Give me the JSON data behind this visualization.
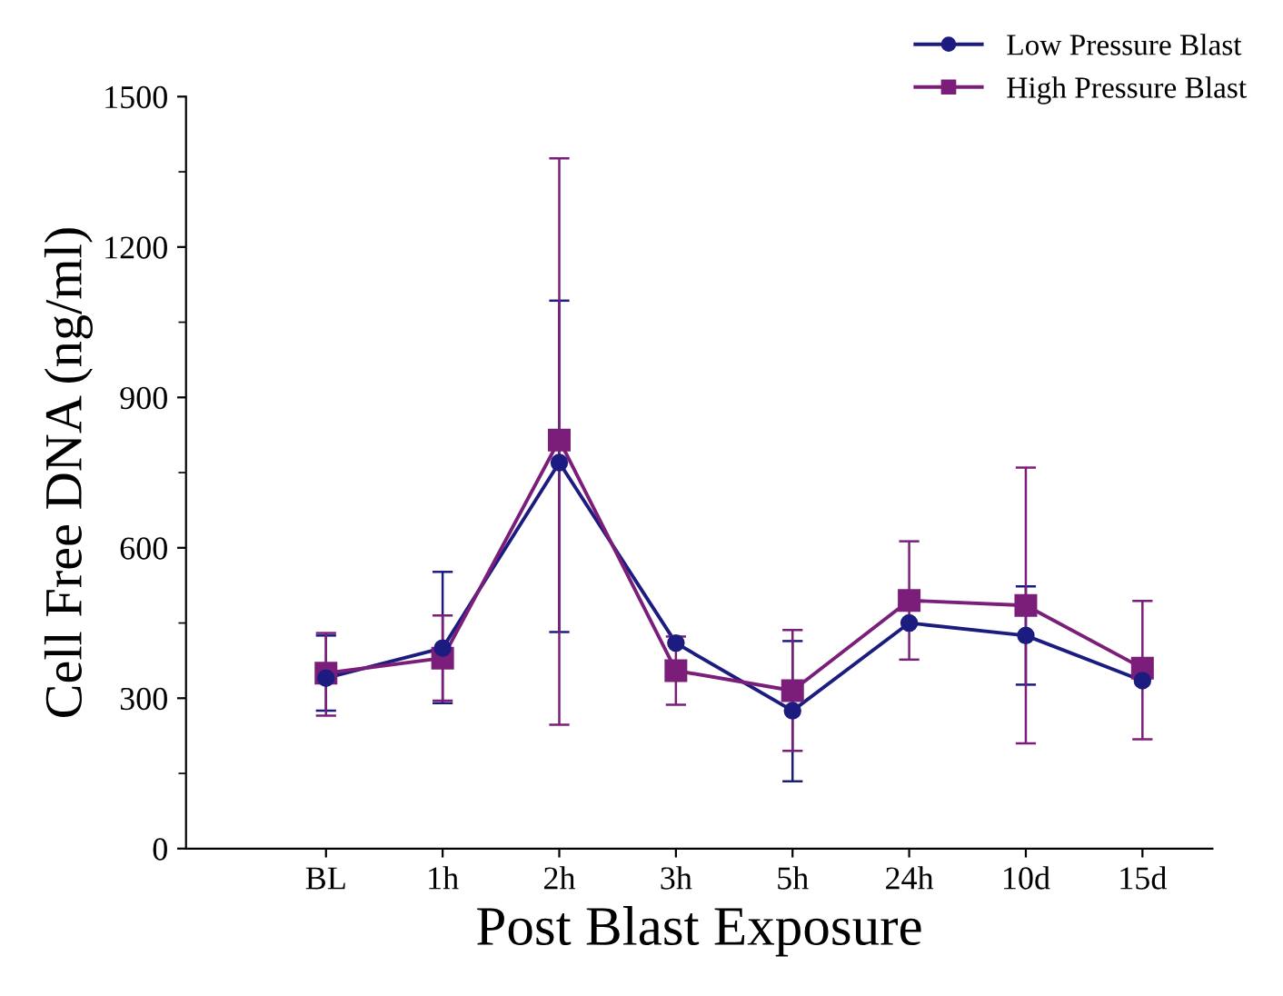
{
  "chart_data": {
    "type": "line",
    "xlabel": "Post Blast Exposure",
    "ylabel": "Cell Free DNA (ng/ml)",
    "categories": [
      "BL",
      "1h",
      "2h",
      "3h",
      "5h",
      "24h",
      "10d",
      "15d"
    ],
    "series": [
      {
        "name": "Low Pressure Blast",
        "color": "#1c1c80",
        "marker": "circle",
        "values": [
          340,
          400,
          770,
          410,
          275,
          450,
          425,
          335
        ],
        "errors": [
          [
            275,
            425
          ],
          [
            290,
            552
          ],
          [
            432,
            1093
          ],
          null,
          [
            134,
            414
          ],
          null,
          [
            327,
            523
          ],
          null
        ]
      },
      {
        "name": "High Pressure Blast",
        "color": "#7b1e7a",
        "marker": "square",
        "values": [
          350,
          380,
          815,
          355,
          315,
          495,
          485,
          360
        ],
        "errors": [
          [
            265,
            430
          ],
          [
            295,
            465
          ],
          [
            247,
            1377
          ],
          [
            287,
            423
          ],
          [
            195,
            436
          ],
          [
            377,
            613
          ],
          [
            210,
            760
          ],
          [
            218,
            494
          ]
        ]
      }
    ],
    "ylim": [
      0,
      1500
    ],
    "yticks": [
      0,
      300,
      600,
      900,
      1200,
      1500
    ],
    "grid": false,
    "legend": "top right",
    "line_style": "solid"
  }
}
